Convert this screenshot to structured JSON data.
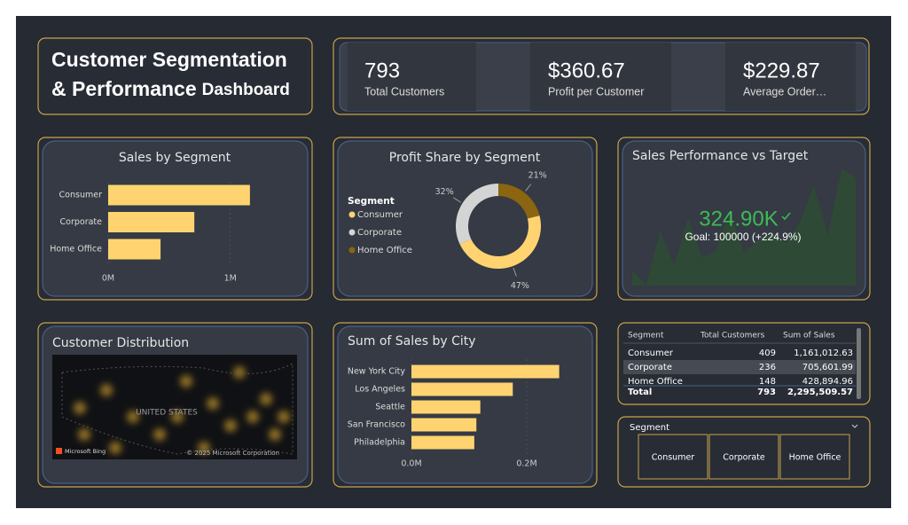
{
  "header": {
    "title_line1": "Customer Segmentation",
    "title_line2": "& Performance",
    "title_suffix": "Dashboard"
  },
  "kpis": [
    {
      "value": "793",
      "label": "Total Customers"
    },
    {
      "value": "$360.67",
      "label": "Profit per Customer"
    },
    {
      "value": "$229.87",
      "label": "Average Order…"
    }
  ],
  "chart_data": [
    {
      "type": "hbar",
      "title": "Sales by Segment",
      "categories": [
        "Consumer",
        "Corporate",
        "Home Office"
      ],
      "values": [
        1161012.63,
        705601.99,
        428894.96
      ],
      "color": "#ffd470",
      "xlim": [
        0,
        1300000
      ],
      "xticks": [
        {
          "value": 0,
          "label": "0M"
        },
        {
          "value": 1000000,
          "label": "1M"
        }
      ]
    },
    {
      "type": "pie",
      "title": "Profit Share by Segment",
      "legend_title": "Segment",
      "categories": [
        "Consumer",
        "Corporate",
        "Home Office"
      ],
      "values": [
        47,
        32,
        21
      ],
      "value_labels": [
        "47%",
        "32%",
        "21%"
      ],
      "colors": [
        "#ffd470",
        "#d4d4d4",
        "#8b6510"
      ]
    },
    {
      "type": "area",
      "title": "Sales Performance vs Target",
      "value_text": "324.90K",
      "goal_text": "Goal: 100000 (+224.9%)",
      "values": [
        13,
        0,
        47,
        17,
        58,
        24,
        30,
        62,
        28,
        39,
        45,
        36,
        54,
        85,
        43,
        100,
        92
      ],
      "ylim": [
        0,
        100
      ],
      "color": "#2e4a36"
    },
    {
      "type": "hbar",
      "title": "Sum of Sales by City",
      "categories": [
        "New York City",
        "Los Angeles",
        "Seattle",
        "San Francisco",
        "Philadelphia"
      ],
      "values": [
        256368,
        175851,
        119541,
        112669,
        109077
      ],
      "color": "#ffd470",
      "xlim": [
        0,
        280000
      ],
      "xticks": [
        {
          "value": 0,
          "label": "0.0M"
        },
        {
          "value": 200000,
          "label": "0.2M"
        }
      ]
    }
  ],
  "map": {
    "title": "Customer Distribution",
    "country": "UNITED STATES",
    "brand": "Microsoft Bing",
    "copyright": "© 2025 Microsoft Corporation"
  },
  "table": {
    "headers": [
      "Segment",
      "Total Customers",
      "Sum of Sales"
    ],
    "rows": [
      [
        "Consumer",
        "409",
        "1,161,012.63"
      ],
      [
        "Corporate",
        "236",
        "705,601.99"
      ],
      [
        "Home Office",
        "148",
        "428,894.96"
      ]
    ],
    "total": [
      "Total",
      "793",
      "2,295,509.57"
    ]
  },
  "slicer": {
    "title": "Segment",
    "options": [
      "Consumer",
      "Corporate",
      "Home Office"
    ]
  }
}
